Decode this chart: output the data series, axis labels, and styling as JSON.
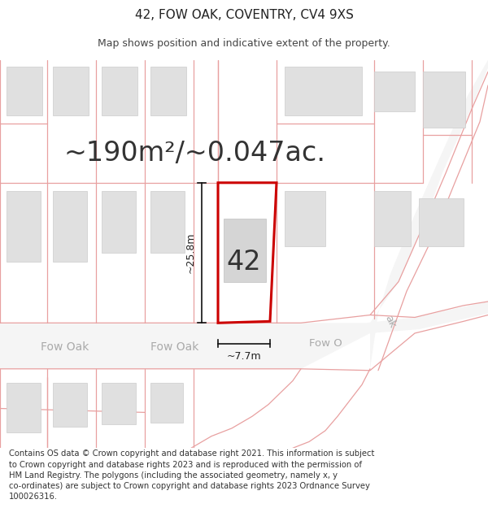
{
  "title": "42, FOW OAK, COVENTRY, CV4 9XS",
  "subtitle": "Map shows position and indicative extent of the property.",
  "area_text": "~190m²/~0.047ac.",
  "number_label": "42",
  "dim_height": "~25.8m",
  "dim_width": "~7.7m",
  "footer_text": "Contains OS data © Crown copyright and database right 2021. This information is subject to Crown copyright and database rights 2023 and is reproduced with the permission of HM Land Registry. The polygons (including the associated geometry, namely x, y co-ordinates) are subject to Crown copyright and database rights 2023 Ordnance Survey 100026316.",
  "bg_color": "#ffffff",
  "map_bg": "#ffffff",
  "plot_outline_color": "#cc0000",
  "road_color": "#e8a0a0",
  "road_fill": "#f5f5f5",
  "building_fill": "#e0e0e0",
  "building_outline": "#cccccc",
  "plot_fill": "#ffffff",
  "dim_line_color": "#111111",
  "title_fontsize": 11,
  "subtitle_fontsize": 9,
  "area_fontsize": 24,
  "number_fontsize": 24,
  "dim_fontsize": 9,
  "road_label_color": "#aaaaaa",
  "road_label_fontsize": 10,
  "footer_fontsize": 7.2
}
